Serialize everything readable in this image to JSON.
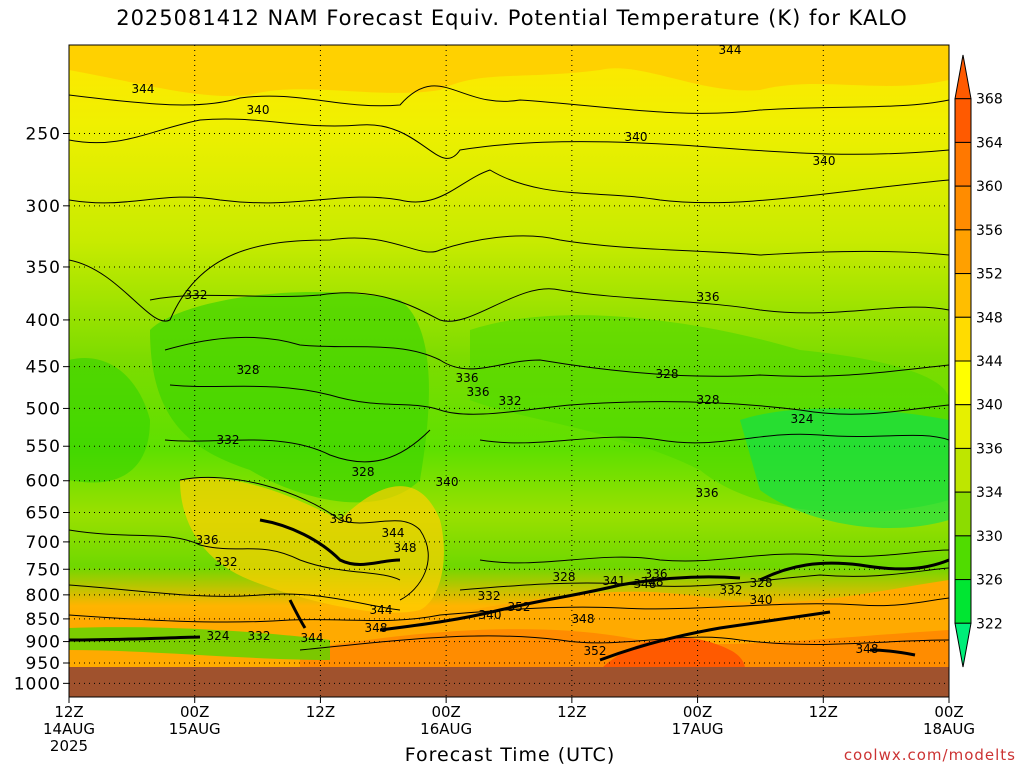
{
  "chart_data": {
    "type": "heatmap",
    "title": "2025081412 NAM Forecast Equiv. Potential Temperature (K) for KALO",
    "xlabel": "Forecast Time (UTC)",
    "ylabel": "",
    "watermark": "coolwx.com/modelts",
    "y_axis": {
      "scale": "log-pressure",
      "range": [
        1035,
        200
      ],
      "ticks": [
        "250",
        "300",
        "350",
        "400",
        "450",
        "500",
        "550",
        "600",
        "650",
        "700",
        "750",
        "800",
        "850",
        "900",
        "950",
        "1000"
      ]
    },
    "x_axis": {
      "ticks": [
        {
          "l1": "12Z",
          "l2": "14AUG",
          "l3": "2025"
        },
        {
          "l1": "00Z",
          "l2": "15AUG",
          "l3": ""
        },
        {
          "l1": "12Z",
          "l2": "",
          "l3": ""
        },
        {
          "l1": "00Z",
          "l2": "16AUG",
          "l3": ""
        },
        {
          "l1": "12Z",
          "l2": "",
          "l3": ""
        },
        {
          "l1": "00Z",
          "l2": "17AUG",
          "l3": ""
        },
        {
          "l1": "12Z",
          "l2": "",
          "l3": ""
        },
        {
          "l1": "00Z",
          "l2": "18AUG",
          "l3": ""
        }
      ]
    },
    "colorbar": {
      "levels": [
        "368",
        "364",
        "360",
        "356",
        "352",
        "348",
        "344",
        "340",
        "336",
        "334",
        "330",
        "326",
        "322"
      ],
      "colors": [
        "#ff5a00",
        "#ff7800",
        "#ff8c00",
        "#ffa000",
        "#ffbe00",
        "#ffdc00",
        "#ffff00",
        "#e6f000",
        "#bee600",
        "#8cdc00",
        "#50dc00",
        "#00e632",
        "#00ee78"
      ]
    },
    "contour_labels": [
      "344",
      "344",
      "340",
      "340",
      "340",
      "332",
      "328",
      "336",
      "336",
      "336",
      "332",
      "332",
      "328",
      "324",
      "328",
      "340",
      "336",
      "344",
      "348",
      "336",
      "332",
      "328",
      "336",
      "344",
      "348",
      "344",
      "348",
      "324",
      "332",
      "340",
      "352",
      "332",
      "328",
      "341",
      "348",
      "336",
      "332",
      "340",
      "328",
      "348",
      "352",
      "348"
    ],
    "grid": true,
    "ground_color": "#a0522d"
  }
}
